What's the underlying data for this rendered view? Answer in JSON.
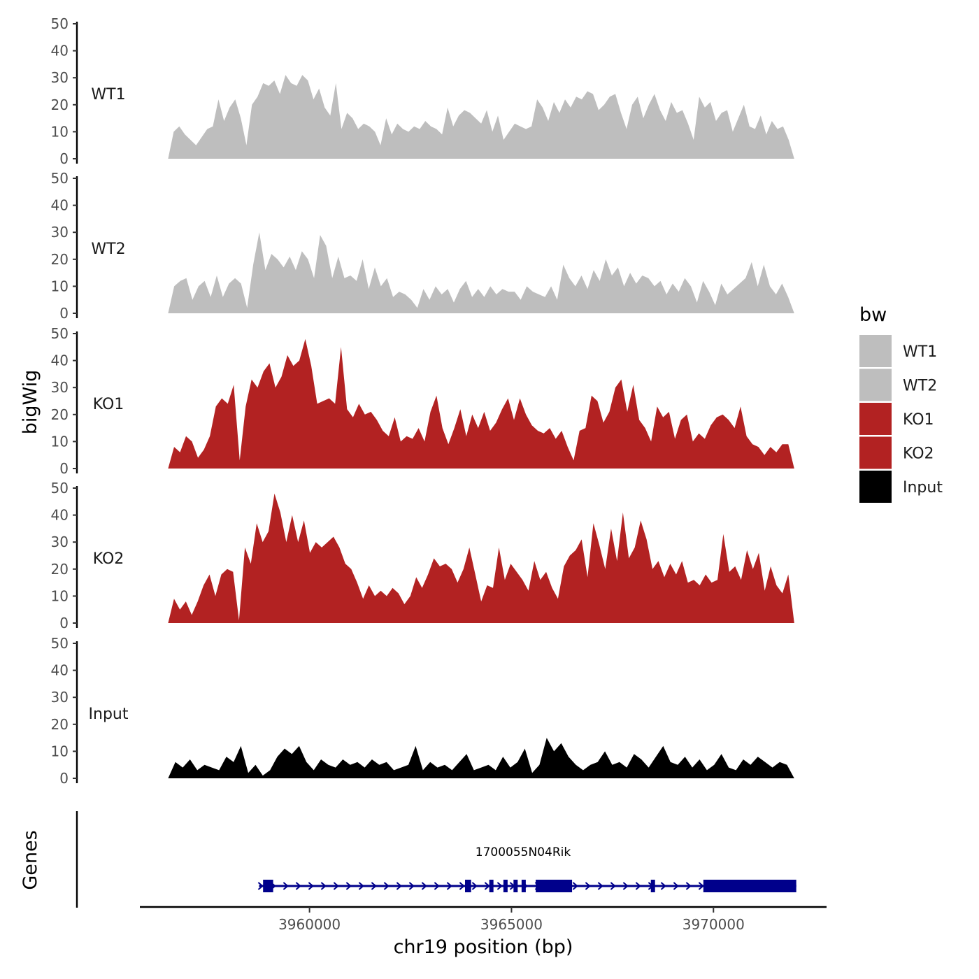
{
  "chart_data": {
    "type": "area",
    "title": "",
    "ylabel": "bigWig",
    "xlabel": "chr19 position (bp)",
    "xlim": [
      3955800,
      3972800
    ],
    "x_ticks": [
      3960000,
      3965000,
      3970000
    ],
    "x_tick_labels": [
      "3960000",
      "3965000",
      "3970000"
    ],
    "ylim": [
      0,
      50
    ],
    "y_ticks": [
      0,
      10,
      20,
      30,
      40,
      50
    ],
    "y_tick_labels": [
      "0",
      "10",
      "20",
      "30",
      "40",
      "50"
    ],
    "x_start": 3956500,
    "x_end": 3972000,
    "legend": {
      "title": "bw",
      "position": "right",
      "entries": [
        {
          "name": "WT1",
          "color": "#bebebe"
        },
        {
          "name": "WT2",
          "color": "#bebebe"
        },
        {
          "name": "KO1",
          "color": "#b22222"
        },
        {
          "name": "KO2",
          "color": "#b22222"
        },
        {
          "name": "Input",
          "color": "#000000"
        }
      ]
    },
    "series": [
      {
        "name": "WT1",
        "color": "#bebebe",
        "values": [
          0,
          10,
          12,
          9,
          7,
          5,
          8,
          11,
          12,
          22,
          14,
          19,
          22,
          15,
          5,
          20,
          23,
          28,
          27,
          29,
          24,
          31,
          28,
          27,
          31,
          29,
          22,
          26,
          19,
          16,
          28,
          11,
          17,
          15,
          11,
          13,
          12,
          10,
          5,
          15,
          9,
          13,
          11,
          10,
          12,
          11,
          14,
          12,
          11,
          9,
          19,
          12,
          16,
          18,
          17,
          15,
          13,
          18,
          10,
          16,
          7,
          10,
          13,
          12,
          11,
          12,
          22,
          19,
          14,
          21,
          17,
          22,
          19,
          23,
          22,
          25,
          24,
          18,
          20,
          23,
          24,
          17,
          11,
          20,
          23,
          15,
          20,
          24,
          18,
          14,
          21,
          17,
          18,
          13,
          7,
          23,
          19,
          21,
          14,
          17,
          18,
          10,
          15,
          20,
          12,
          11,
          16,
          9,
          14,
          11,
          12,
          7,
          0
        ]
      },
      {
        "name": "WT2",
        "color": "#bebebe",
        "values": [
          0,
          10,
          12,
          13,
          5,
          10,
          12,
          6,
          14,
          6,
          11,
          13,
          11,
          2,
          18,
          30,
          16,
          22,
          20,
          17,
          21,
          16,
          23,
          20,
          13,
          29,
          25,
          13,
          21,
          13,
          14,
          12,
          20,
          9,
          17,
          10,
          13,
          6,
          8,
          7,
          5,
          2,
          9,
          5,
          10,
          7,
          9,
          4,
          9,
          12,
          6,
          9,
          6,
          10,
          7,
          9,
          8,
          8,
          5,
          10,
          8,
          7,
          6,
          10,
          5,
          18,
          13,
          10,
          14,
          9,
          16,
          12,
          20,
          14,
          17,
          10,
          15,
          11,
          14,
          13,
          10,
          12,
          7,
          11,
          8,
          13,
          10,
          4,
          12,
          8,
          3,
          11,
          7,
          9,
          11,
          13,
          19,
          10,
          18,
          10,
          7,
          11,
          6,
          0
        ]
      },
      {
        "name": "KO1",
        "color": "#b22222",
        "values": [
          0,
          8,
          6,
          12,
          10,
          4,
          7,
          12,
          23,
          26,
          24,
          31,
          3,
          23,
          33,
          30,
          36,
          39,
          30,
          34,
          42,
          38,
          40,
          48,
          38,
          24,
          25,
          26,
          24,
          45,
          22,
          19,
          24,
          20,
          21,
          18,
          14,
          12,
          19,
          10,
          12,
          11,
          15,
          10,
          21,
          27,
          15,
          9,
          15,
          22,
          12,
          20,
          15,
          21,
          14,
          17,
          22,
          26,
          18,
          26,
          20,
          16,
          14,
          13,
          15,
          11,
          14,
          8,
          3,
          14,
          15,
          27,
          25,
          17,
          21,
          30,
          33,
          21,
          31,
          18,
          15,
          10,
          23,
          19,
          21,
          11,
          18,
          20,
          10,
          13,
          11,
          16,
          19,
          20,
          18,
          15,
          23,
          12,
          9,
          8,
          5,
          8,
          6,
          9,
          9,
          0
        ]
      },
      {
        "name": "KO2",
        "color": "#b22222",
        "values": [
          0,
          9,
          5,
          8,
          3,
          8,
          14,
          18,
          10,
          18,
          20,
          19,
          1,
          28,
          22,
          37,
          30,
          34,
          48,
          41,
          30,
          40,
          30,
          38,
          26,
          30,
          28,
          30,
          32,
          28,
          22,
          20,
          15,
          9,
          14,
          10,
          12,
          10,
          13,
          11,
          7,
          10,
          17,
          13,
          18,
          24,
          21,
          22,
          20,
          15,
          20,
          28,
          18,
          8,
          14,
          13,
          28,
          16,
          22,
          19,
          16,
          12,
          23,
          16,
          19,
          13,
          9,
          21,
          25,
          27,
          31,
          17,
          37,
          29,
          20,
          35,
          23,
          41,
          24,
          28,
          38,
          31,
          20,
          23,
          17,
          22,
          18,
          23,
          15,
          16,
          14,
          18,
          15,
          16,
          33,
          19,
          21,
          16,
          27,
          20,
          26,
          12,
          21,
          14,
          11,
          18,
          0
        ]
      },
      {
        "name": "Input",
        "color": "#000000",
        "values": [
          0,
          6,
          4,
          7,
          3,
          5,
          4,
          3,
          8,
          6,
          12,
          2,
          5,
          1,
          3,
          8,
          11,
          9,
          12,
          6,
          3,
          7,
          5,
          4,
          7,
          5,
          6,
          4,
          7,
          5,
          6,
          3,
          4,
          5,
          12,
          3,
          6,
          4,
          5,
          3,
          6,
          9,
          3,
          4,
          5,
          3,
          8,
          4,
          6,
          11,
          2,
          5,
          15,
          10,
          13,
          8,
          5,
          3,
          5,
          6,
          10,
          5,
          6,
          4,
          9,
          7,
          4,
          8,
          12,
          6,
          5,
          8,
          4,
          7,
          3,
          5,
          9,
          4,
          3,
          7,
          5,
          8,
          6,
          4,
          6,
          5,
          0
        ]
      }
    ],
    "gene_track": {
      "label": "Genes",
      "gene_name": "1700055N04Rik",
      "strand": "+",
      "start": 3958750,
      "end": 3972050,
      "exons": [
        [
          3958850,
          3959100
        ],
        [
          3963850,
          3964000
        ],
        [
          3964450,
          3964550
        ],
        [
          3964800,
          3964900
        ],
        [
          3965050,
          3965100
        ],
        [
          3965250,
          3965300
        ],
        [
          3965600,
          3966500
        ],
        [
          3968450,
          3968550
        ],
        [
          3969750,
          3972050
        ]
      ]
    }
  }
}
